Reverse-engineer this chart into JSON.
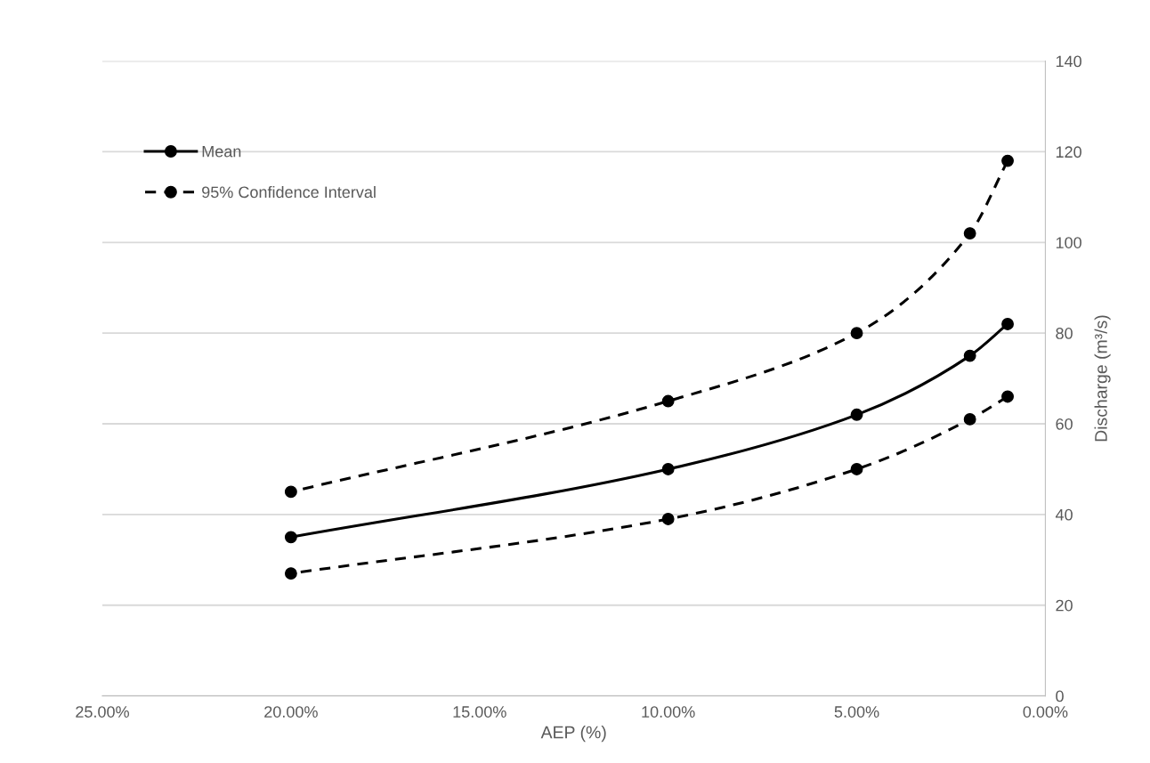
{
  "chart_data": {
    "type": "line",
    "xlabel": "AEP (%)",
    "y2label": "Discharge (m³/s)",
    "x": [
      20,
      10,
      5,
      2,
      1
    ],
    "series": [
      {
        "name": "Mean",
        "color": "#000000",
        "values": [
          35,
          50,
          62,
          75,
          82
        ],
        "axis": "y2",
        "line_style": "solid"
      },
      {
        "name": "95% Confidence Interval",
        "color": "#000000",
        "values": [
          45,
          65,
          80,
          102,
          118
        ],
        "axis": "y2",
        "line_style": "dashed"
      },
      {
        "color": "#000000",
        "values": [
          27,
          39,
          50,
          61,
          66
        ],
        "axis": "y2",
        "line_style": "dashed"
      }
    ],
    "xlim": [
      25,
      0
    ],
    "xticks": [
      {
        "value": 25,
        "label": "25.00%"
      },
      {
        "value": 20,
        "label": "20.00%"
      },
      {
        "value": 15,
        "label": "15.00%"
      },
      {
        "value": 10,
        "label": "10.00%"
      },
      {
        "value": 5,
        "label": "5.00%"
      },
      {
        "value": 0,
        "label": "0.00%"
      }
    ],
    "y2lim": [
      0,
      140
    ],
    "y2ticks": [
      0,
      20,
      40,
      60,
      80,
      100,
      120,
      140
    ],
    "grid": "y",
    "legend": "top left",
    "marker": "circle"
  }
}
